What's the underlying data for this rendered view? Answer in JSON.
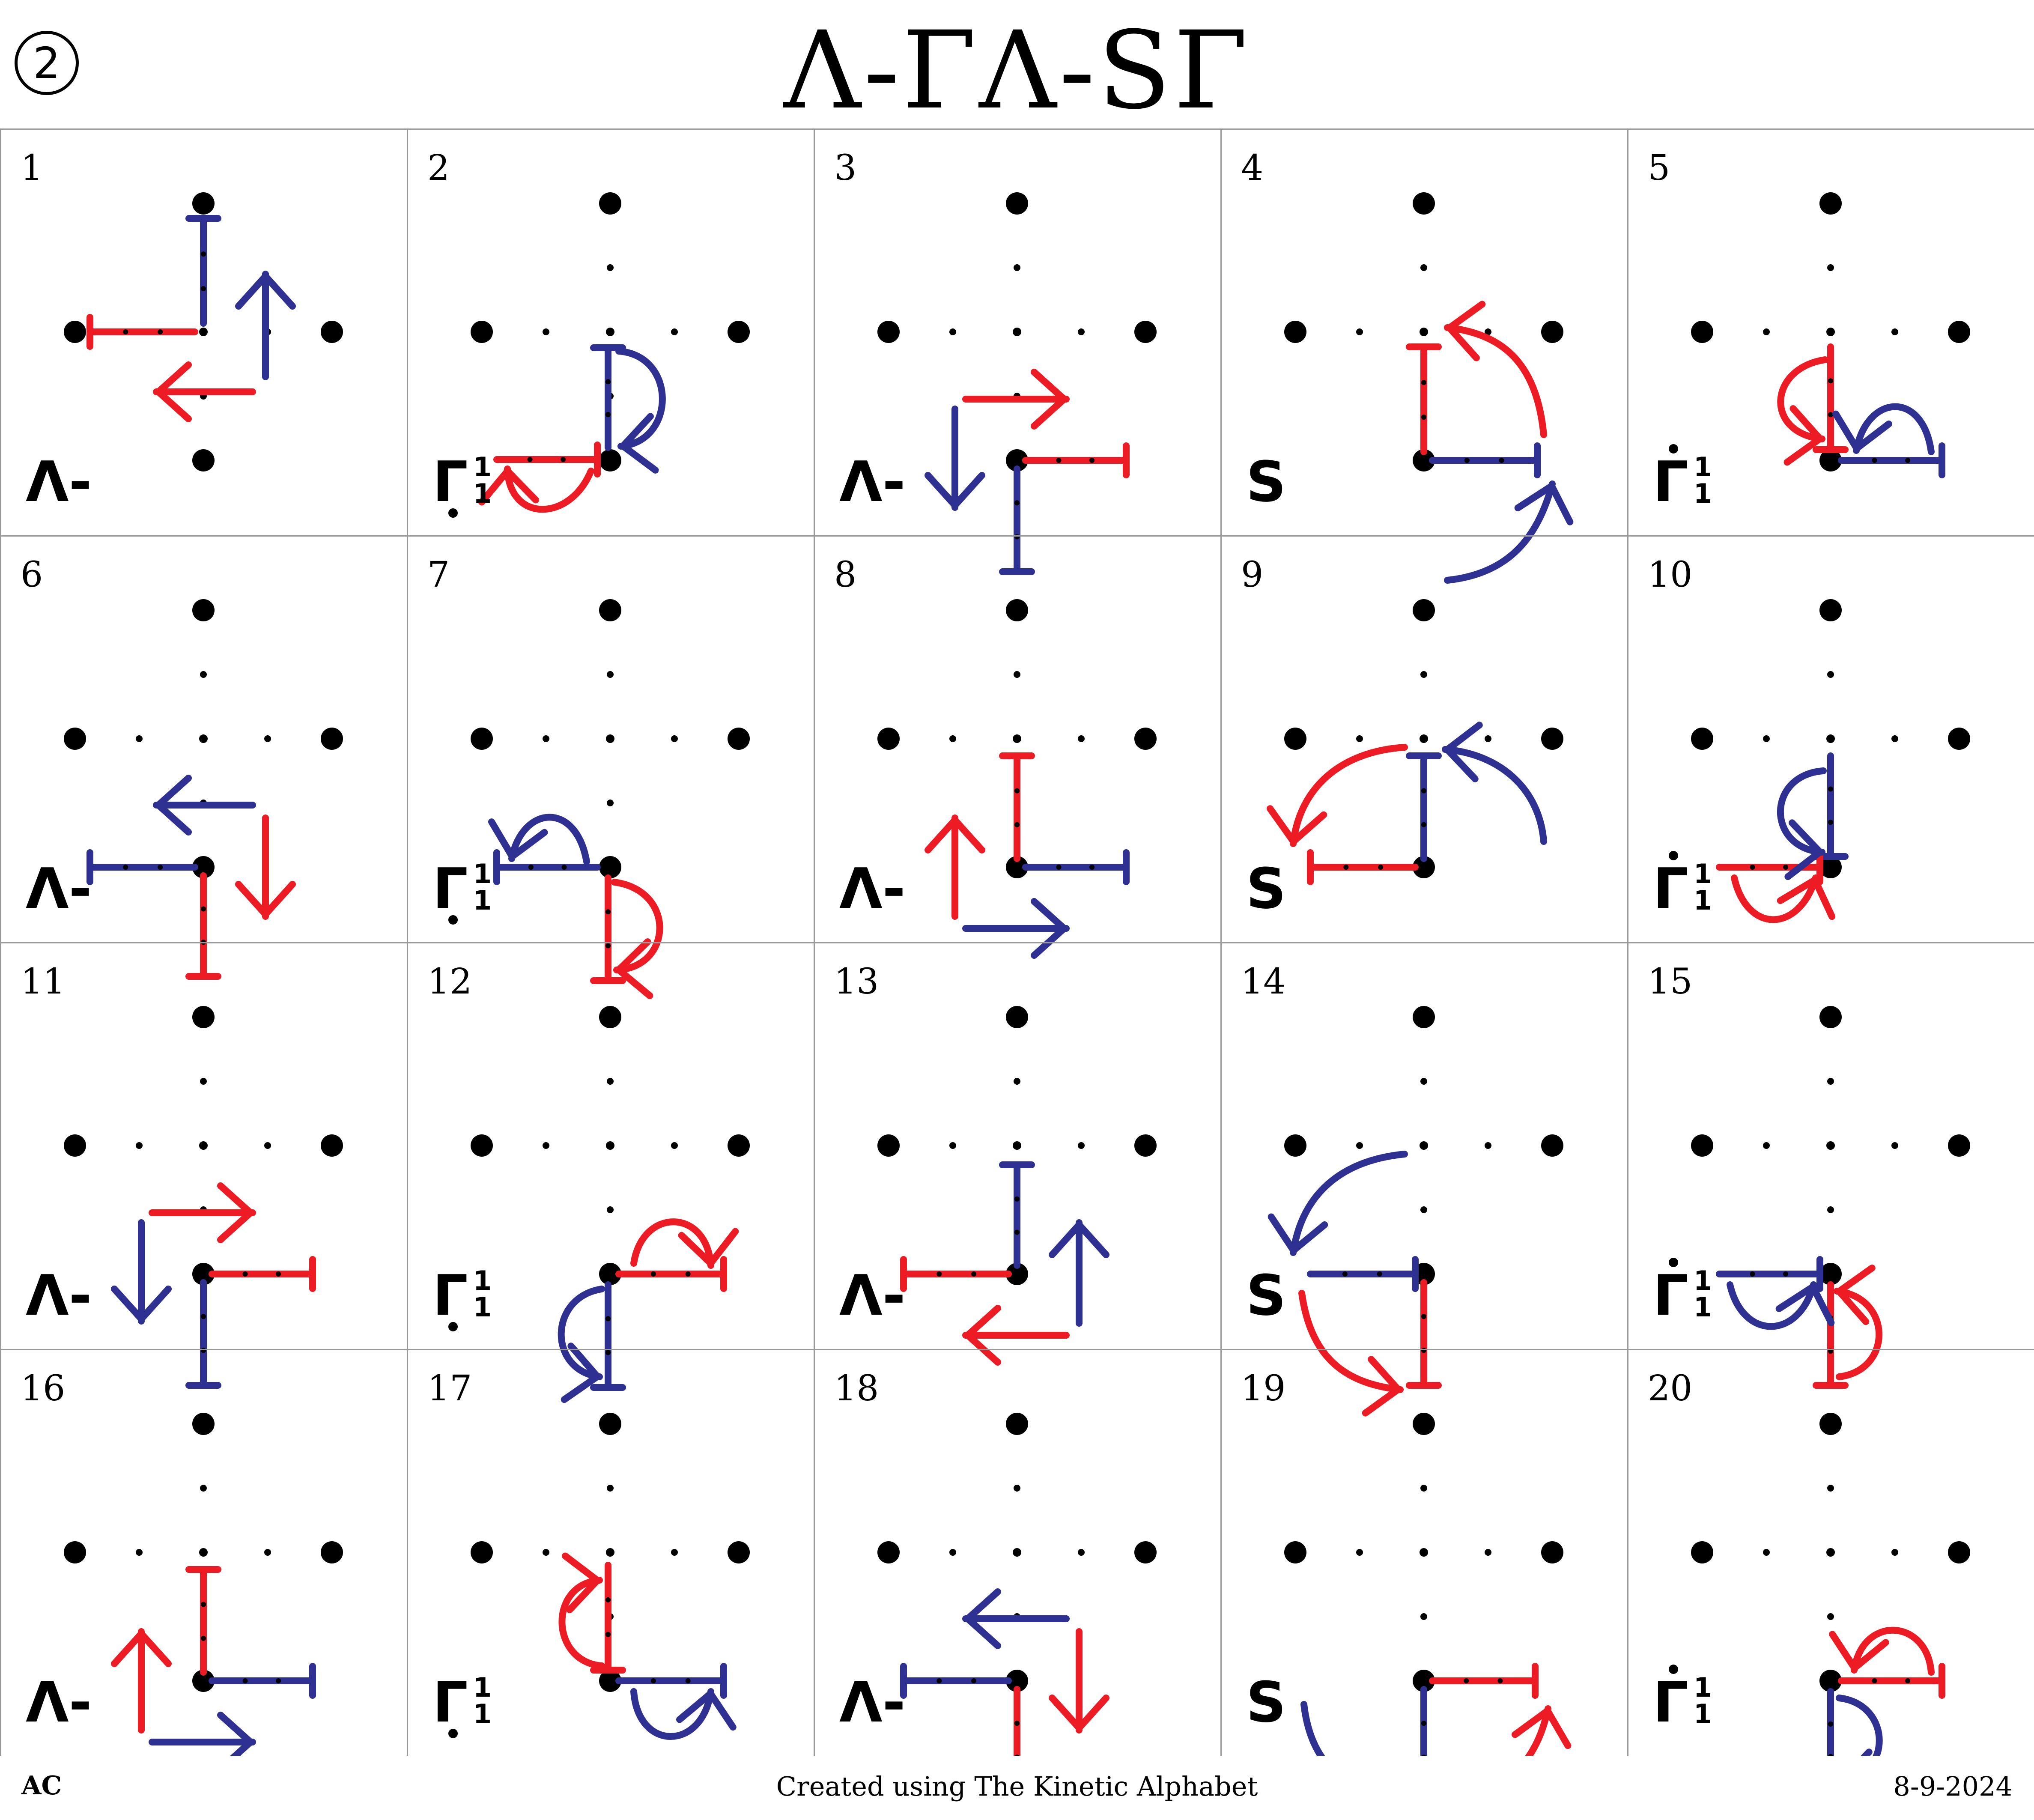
{
  "header": {
    "page_number": "2",
    "title": "Λ-ΓΛ-SΓ"
  },
  "colors": {
    "red": "#ed1c24",
    "blue": "#2e3192",
    "dot": "#000000",
    "grid": "#9a9a9a"
  },
  "cells": [
    {
      "number": "1",
      "letter": "Λ-",
      "letter_kind": "lambda"
    },
    {
      "number": "2",
      "letter": "Γ",
      "letter_kind": "gamma",
      "sup": "1",
      "sub": "1",
      "dot": "below"
    },
    {
      "number": "3",
      "letter": "Λ-",
      "letter_kind": "lambda"
    },
    {
      "number": "4",
      "letter": "S",
      "letter_kind": "s"
    },
    {
      "number": "5",
      "letter": "Γ",
      "letter_kind": "gamma",
      "sup": "1",
      "sub": "1",
      "dot": "above"
    },
    {
      "number": "6",
      "letter": "Λ-",
      "letter_kind": "lambda"
    },
    {
      "number": "7",
      "letter": "Γ",
      "letter_kind": "gamma",
      "sup": "1",
      "sub": "1",
      "dot": "below"
    },
    {
      "number": "8",
      "letter": "Λ-",
      "letter_kind": "lambda"
    },
    {
      "number": "9",
      "letter": "S",
      "letter_kind": "s"
    },
    {
      "number": "10",
      "letter": "Γ",
      "letter_kind": "gamma",
      "sup": "1",
      "sub": "1",
      "dot": "above"
    },
    {
      "number": "11",
      "letter": "Λ-",
      "letter_kind": "lambda"
    },
    {
      "number": "12",
      "letter": "Γ",
      "letter_kind": "gamma",
      "sup": "1",
      "sub": "1",
      "dot": "below"
    },
    {
      "number": "13",
      "letter": "Λ-",
      "letter_kind": "lambda"
    },
    {
      "number": "14",
      "letter": "S",
      "letter_kind": "s"
    },
    {
      "number": "15",
      "letter": "Γ",
      "letter_kind": "gamma",
      "sup": "1",
      "sub": "1",
      "dot": "above"
    },
    {
      "number": "16",
      "letter": "Λ-",
      "letter_kind": "lambda"
    },
    {
      "number": "17",
      "letter": "Γ",
      "letter_kind": "gamma",
      "sup": "1",
      "sub": "1",
      "dot": "below"
    },
    {
      "number": "18",
      "letter": "Λ-",
      "letter_kind": "lambda"
    },
    {
      "number": "19",
      "letter": "S",
      "letter_kind": "s"
    },
    {
      "number": "20",
      "letter": "Γ",
      "letter_kind": "gamma",
      "sup": "1",
      "sub": "1",
      "dot": "above"
    }
  ],
  "footer": {
    "author": "AC",
    "credit": "Created using The Kinetic Alphabet",
    "date": "8-9-2024"
  }
}
